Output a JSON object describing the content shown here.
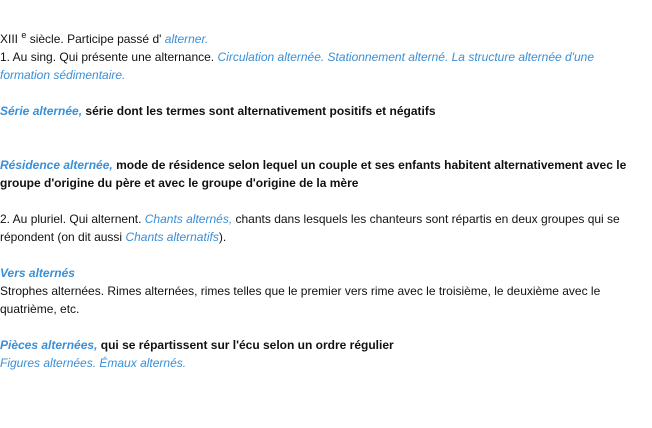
{
  "etymology": {
    "century": "XIII",
    "sup": "e",
    "text": "siècle. Participe passé d'",
    "link": "alterner."
  },
  "sense1": {
    "text": "1. Au sing. Qui présente une alternance.",
    "examples": "Circulation alternée. Stationnement alterné. La structure alternée d'une formation sédimentaire."
  },
  "serie": {
    "term": "Série alternée,",
    "def": "série dont les termes sont alternativement positifs et négatifs"
  },
  "residence": {
    "term": "Résidence alternée,",
    "def": "mode de résidence selon lequel un couple et ses enfants habitent alternativement avec le groupe d'origine du père et avec le groupe d'origine de la mère"
  },
  "sense2": {
    "text": "2. Au pluriel. Qui alternent.",
    "example": "Chants alternés,",
    "def": "chants dans lesquels les chanteurs sont répartis en deux groupes qui se répondent (on dit aussi",
    "alt": "Chants alternatifs",
    "end": ")."
  },
  "vers": {
    "term": "Vers alternés",
    "def": "Strophes alternées. Rimes alternées, rimes telles que le premier vers rime avec le troisième, le deuxième avec le quatrième, etc."
  },
  "pieces": {
    "term": "Pièces alternées,",
    "def": "qui se répartissent sur l'écu selon un ordre régulier",
    "examples": "Figures alternées. Émaux alternés."
  }
}
